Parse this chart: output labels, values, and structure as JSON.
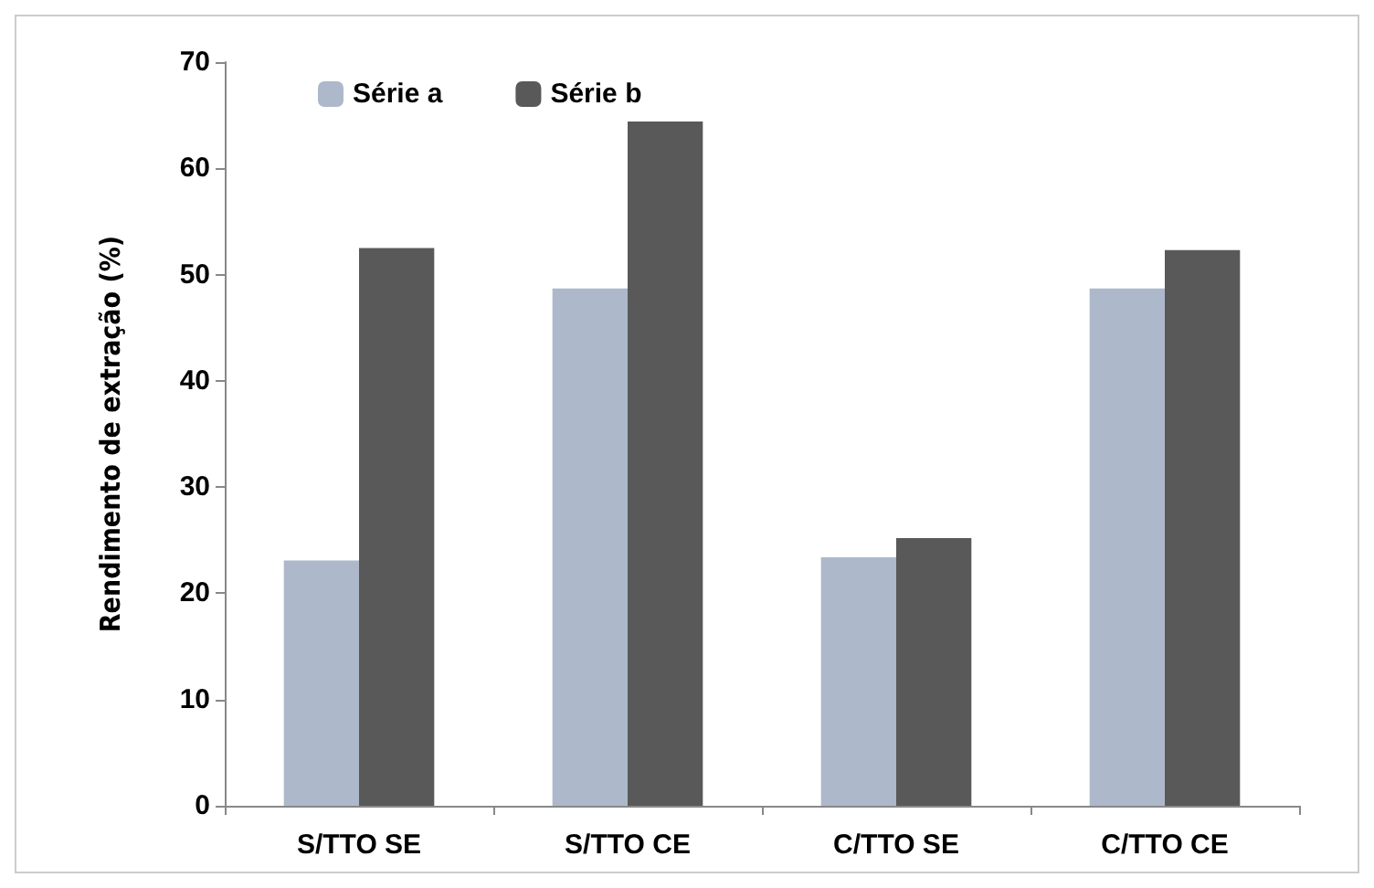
{
  "chart_data": {
    "type": "bar",
    "ylabel": "Rendimento de extração (%)",
    "categories": [
      "S/TTO SE",
      "S/TTO CE",
      "C/TTO SE",
      "C/TTO CE"
    ],
    "series": [
      {
        "name": "Série a",
        "color": "#adb9ca",
        "values": [
          23.1,
          48.7,
          23.4,
          48.7
        ]
      },
      {
        "name": "Série b",
        "color": "#595959",
        "values": [
          52.5,
          64.4,
          25.2,
          52.3
        ]
      }
    ],
    "ylim": [
      0,
      70
    ],
    "yticks": [
      0,
      10,
      20,
      30,
      40,
      50,
      60,
      70
    ],
    "grid": false,
    "legend": "top left"
  }
}
